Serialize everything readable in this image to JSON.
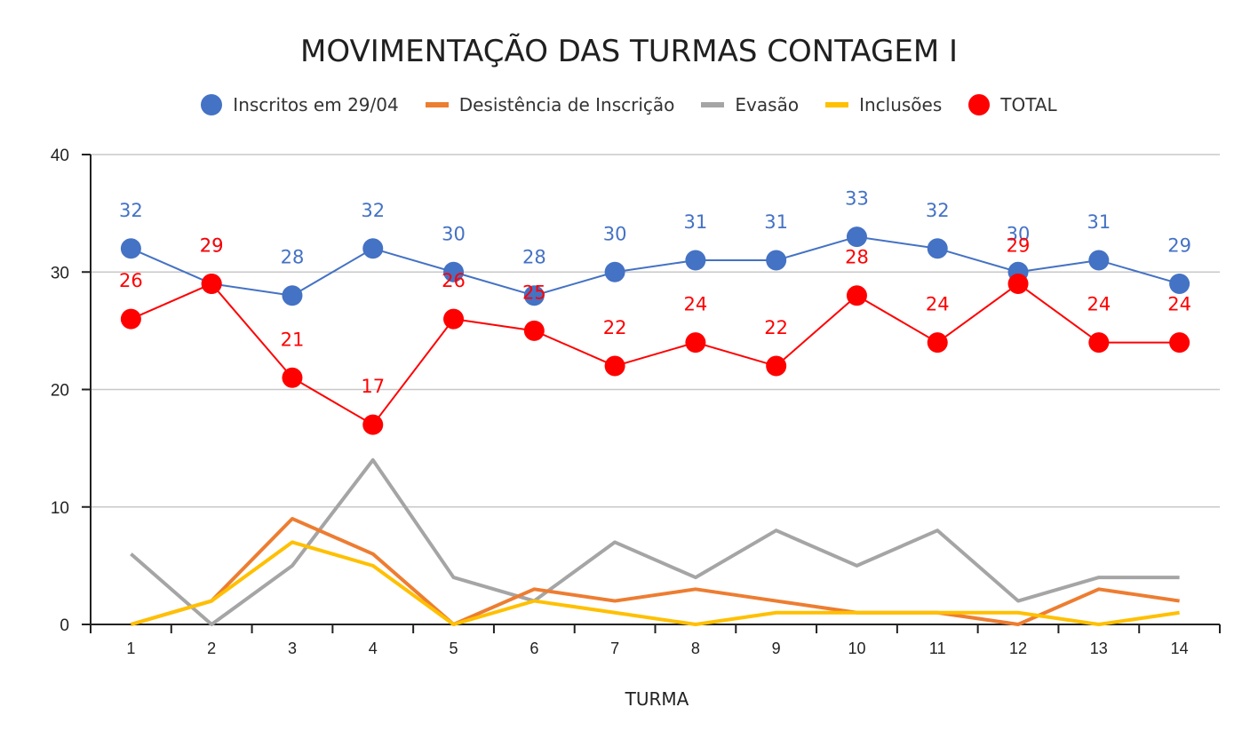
{
  "chart_data": {
    "type": "line",
    "title": "MOVIMENTAÇÃO DAS TURMAS CONTAGEM I",
    "xlabel": "TURMA",
    "ylabel": "",
    "ylim": [
      0,
      40
    ],
    "yticks": [
      0,
      10,
      20,
      30,
      40
    ],
    "categories": [
      "1",
      "2",
      "3",
      "4",
      "5",
      "6",
      "7",
      "8",
      "9",
      "10",
      "11",
      "12",
      "13",
      "14"
    ],
    "legend_position": "top-center",
    "grid": true,
    "series": [
      {
        "name": "Inscritos em 29/04",
        "style": "line-markers-labels",
        "color": "#4472c4",
        "values": [
          32,
          29,
          28,
          32,
          30,
          28,
          30,
          31,
          31,
          33,
          32,
          30,
          31,
          29
        ]
      },
      {
        "name": "Desistência de Inscrição",
        "style": "line",
        "color": "#ed7d31",
        "values": [
          0,
          2,
          9,
          6,
          0,
          3,
          2,
          3,
          2,
          1,
          1,
          0,
          3,
          2
        ]
      },
      {
        "name": "Evasão",
        "style": "line",
        "color": "#a5a5a5",
        "values": [
          6,
          0,
          5,
          14,
          4,
          2,
          7,
          4,
          8,
          5,
          8,
          2,
          4,
          4
        ]
      },
      {
        "name": "Inclusões",
        "style": "line",
        "color": "#ffc000",
        "values": [
          0,
          2,
          7,
          5,
          0,
          2,
          1,
          0,
          1,
          1,
          1,
          1,
          0,
          1
        ]
      },
      {
        "name": "TOTAL",
        "style": "line-markers-labels",
        "color": "#ff0000",
        "values": [
          26,
          29,
          21,
          17,
          26,
          25,
          22,
          24,
          22,
          28,
          24,
          29,
          24,
          24
        ]
      }
    ]
  }
}
